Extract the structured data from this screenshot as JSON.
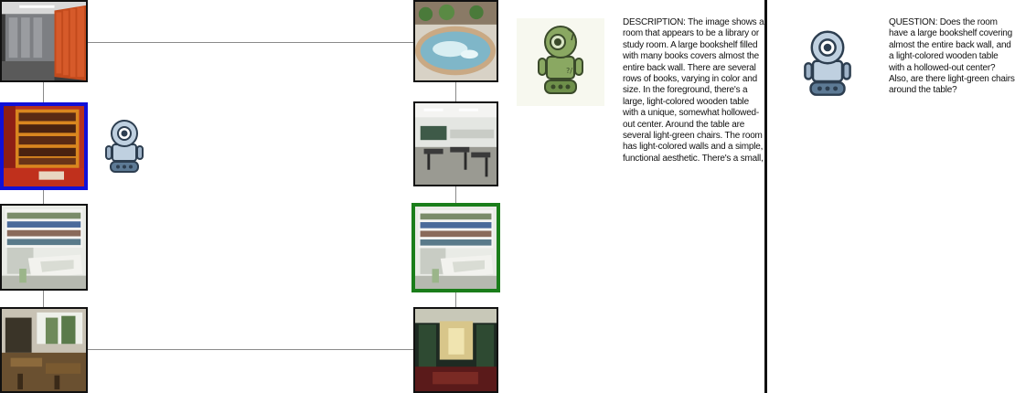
{
  "description": {
    "text": "DESCRIPTION: The image shows a room that appears to be a library or study room. A large bookshelf filled with many books covers almost the entire back wall. There are several rows of books, varying in color and size. In the foreground, there's a large, light-colored wooden table with a unique, somewhat hollowed-out center. Around the table are several light-green chairs. The room has light-colored walls and a simple, functional aesthetic. There's a small,"
  },
  "question": {
    "text": "QUESTION: Does the room have a large bookshelf covering almost the entire back wall, and a light-colored wooden table with a hollowed-out center? Also, are there light-green chairs around the table?"
  },
  "colors": {
    "selected_left": "#1010d8",
    "selected_right": "#1a7d1a",
    "describer_robot": "#6e8f4a",
    "questioner_robot": "#5d7a95"
  },
  "icons": {
    "left_agent": "robot-icon",
    "describer_agent": "robot-icon",
    "questioner_agent": "robot-icon"
  },
  "images": {
    "left": [
      "locker-room",
      "wine-shelves",
      "library-table",
      "reading-room"
    ],
    "right": [
      "hot-tub",
      "classroom",
      "library-table",
      "hotel-lobby"
    ],
    "selected_left_index": 1,
    "selected_right_index": 2
  }
}
